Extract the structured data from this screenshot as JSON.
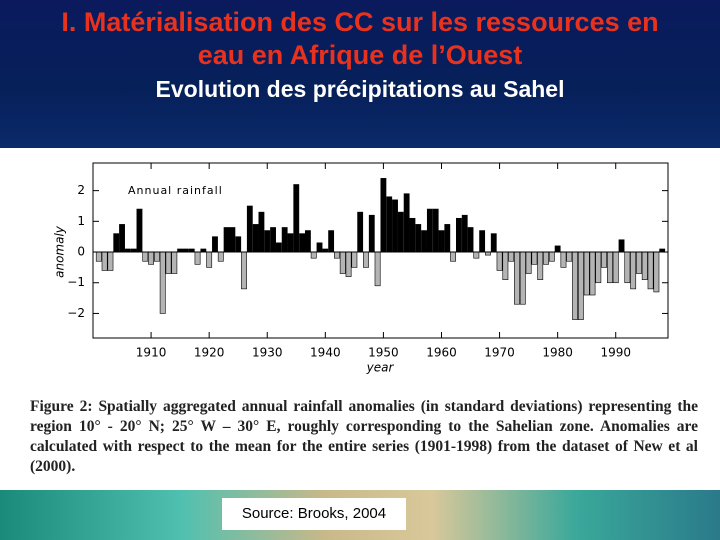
{
  "title": [
    "I. Matérialisation des CC sur les ressources en",
    "eau en Afrique de l’Ouest"
  ],
  "subtitle": "Evolution des précipitations au Sahel",
  "caption": "Figure 2: Spatially aggregated annual rainfall anomalies (in standard deviations) representing the region 10° - 20° N; 25° W – 30° E, roughly corresponding to the Sahelian zone. Anomalies are calculated with respect to the mean for the entire series (1901-1998) from the dataset of New et al (2000).",
  "source": "Source: Brooks, 2004",
  "chart_data": {
    "type": "bar",
    "annotation": "Annual rainfall",
    "x_label": "year",
    "y_label": "anomaly",
    "x": [
      1901,
      1902,
      1903,
      1904,
      1905,
      1906,
      1907,
      1908,
      1909,
      1910,
      1911,
      1912,
      1913,
      1914,
      1915,
      1916,
      1917,
      1918,
      1919,
      1920,
      1921,
      1922,
      1923,
      1924,
      1925,
      1926,
      1927,
      1928,
      1929,
      1930,
      1931,
      1932,
      1933,
      1934,
      1935,
      1936,
      1937,
      1938,
      1939,
      1940,
      1941,
      1942,
      1943,
      1944,
      1945,
      1946,
      1947,
      1948,
      1949,
      1950,
      1951,
      1952,
      1953,
      1954,
      1955,
      1956,
      1957,
      1958,
      1959,
      1960,
      1961,
      1962,
      1963,
      1964,
      1965,
      1966,
      1967,
      1968,
      1969,
      1970,
      1971,
      1972,
      1973,
      1974,
      1975,
      1976,
      1977,
      1978,
      1979,
      1980,
      1981,
      1982,
      1983,
      1984,
      1985,
      1986,
      1987,
      1988,
      1989,
      1990,
      1991,
      1992,
      1993,
      1994,
      1995,
      1996,
      1997,
      1998
    ],
    "values": [
      -0.3,
      -0.6,
      -0.6,
      0.6,
      0.9,
      0.1,
      0.1,
      1.4,
      -0.3,
      -0.4,
      -0.3,
      -2.0,
      -0.7,
      -0.7,
      0.1,
      0.1,
      0.1,
      -0.4,
      0.1,
      -0.5,
      0.5,
      -0.3,
      0.8,
      0.8,
      0.5,
      -1.2,
      1.5,
      0.9,
      1.3,
      0.7,
      0.8,
      0.3,
      0.8,
      0.6,
      2.2,
      0.6,
      0.7,
      -0.2,
      0.3,
      0.1,
      0.7,
      -0.2,
      -0.7,
      -0.8,
      -0.5,
      1.3,
      -0.5,
      1.2,
      -1.1,
      2.4,
      1.8,
      1.7,
      1.3,
      1.9,
      1.1,
      0.9,
      0.7,
      1.4,
      1.4,
      0.7,
      0.9,
      -0.3,
      1.1,
      1.2,
      0.8,
      -0.2,
      0.7,
      -0.1,
      0.6,
      -0.6,
      -0.9,
      -0.3,
      -1.7,
      -1.7,
      -0.7,
      -0.4,
      -0.9,
      -0.4,
      -0.3,
      0.2,
      -0.5,
      -0.3,
      -2.2,
      -2.2,
      -1.4,
      -1.4,
      -1.0,
      -0.5,
      -1.0,
      -1.0,
      0.4,
      -1.0,
      -1.2,
      -0.7,
      -0.9,
      -1.2,
      -1.3,
      0.1
    ],
    "colors": {
      "positive": "#000000",
      "negative": "#b4b4b4"
    },
    "xlim": [
      1900,
      1999
    ],
    "xticks": [
      1910,
      1920,
      1930,
      1940,
      1950,
      1960,
      1970,
      1980,
      1990
    ],
    "ylim": [
      -2.8,
      2.9
    ],
    "yticks": [
      {
        "value": -2,
        "label": "−2"
      },
      {
        "value": -1,
        "label": "−1"
      },
      0,
      1,
      2
    ]
  }
}
